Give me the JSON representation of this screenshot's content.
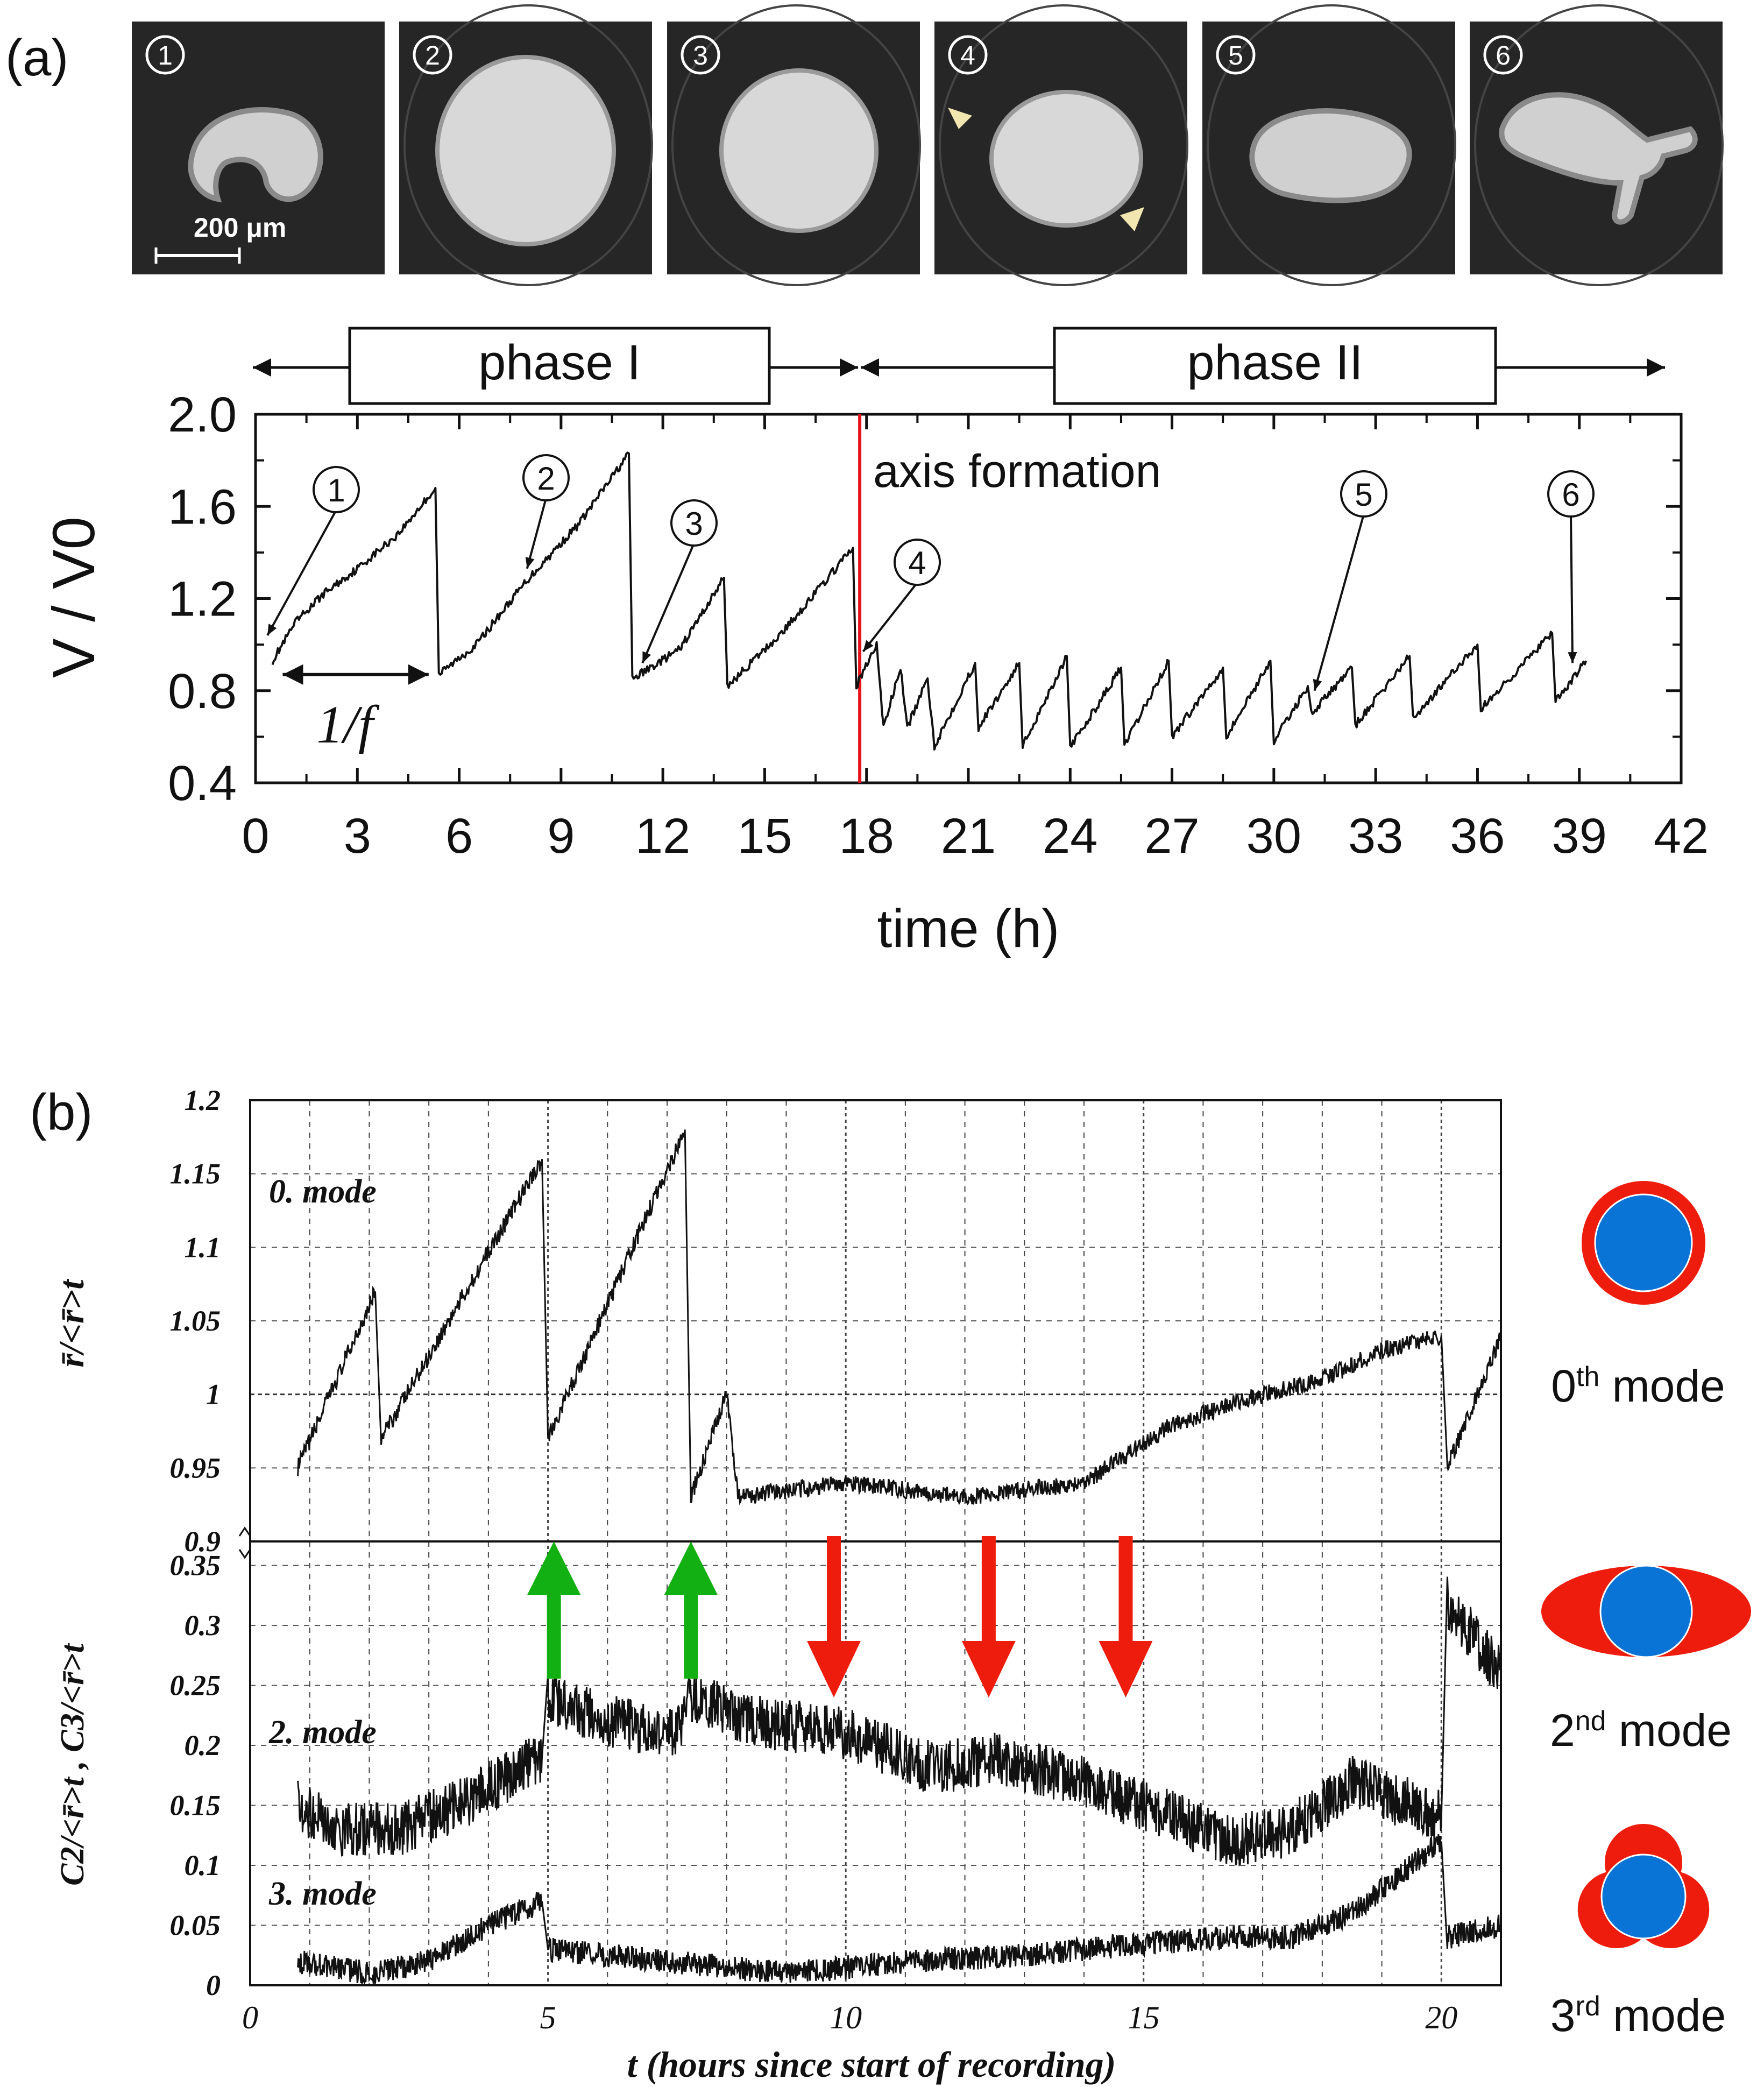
{
  "panel_a": {
    "label": "(a)",
    "thumbnails": [
      "①",
      "②",
      "③",
      "④",
      "⑤",
      "⑥"
    ],
    "scale_bar": "200 μm",
    "phases": [
      "phase I",
      "phase II"
    ],
    "annotation": "axis formation",
    "period_label": "1/f"
  },
  "panel_b": {
    "label": "(b)",
    "modes": [
      {
        "label": "0th mode",
        "sup": "th",
        "color_shell": "#ee1c0c",
        "color_core": "#0a73d6"
      },
      {
        "label": "2nd mode",
        "sup": "nd",
        "color_shell": "#ee1c0c",
        "color_core": "#0a73d6"
      },
      {
        "label": "3rd mode",
        "sup": "rd",
        "color_shell": "#ee1c0c",
        "color_core": "#0a73d6"
      }
    ],
    "mode_text": [
      "0. mode",
      "2. mode",
      "3. mode"
    ],
    "arrow_colors": {
      "up": "#12b012",
      "down": "#ee1c0c"
    }
  },
  "chart_data": [
    {
      "type": "line",
      "xlabel": "time  (h)",
      "ylabel": "V / V0",
      "xlim": [
        0,
        42
      ],
      "ylim": [
        0.4,
        2.0
      ],
      "xticks": [
        0,
        3,
        6,
        9,
        12,
        15,
        18,
        21,
        24,
        27,
        30,
        33,
        36,
        39,
        42
      ],
      "yticks": [
        0.4,
        0.8,
        1.2,
        1.6,
        2.0
      ],
      "grid": false,
      "axis_formation_x": 17.8,
      "series": [
        {
          "x": [
            0.5,
            1.2,
            2.0,
            3.0,
            4.2,
            5.3,
            5.4,
            6.5,
            8.0,
            9.5,
            11.0,
            11.1,
            12.5,
            13.8,
            13.9,
            15.5,
            17.6,
            17.7,
            18.3,
            18.5,
            19.0,
            19.2,
            19.8,
            20.0,
            21.2,
            21.3,
            22.5,
            22.6,
            23.9,
            24.0,
            25.5,
            25.6,
            26.9,
            27.0,
            28.5,
            28.6,
            29.9,
            30.0,
            31.0,
            31.1,
            32.3,
            32.4,
            34.0,
            34.1,
            36.0,
            36.1,
            38.2,
            38.3,
            39.2
          ],
          "y": [
            0.93,
            1.1,
            1.22,
            1.33,
            1.48,
            1.68,
            0.87,
            1.0,
            1.28,
            1.52,
            1.83,
            0.85,
            0.98,
            1.29,
            0.82,
            1.05,
            1.42,
            0.82,
            1.0,
            0.64,
            0.9,
            0.64,
            0.85,
            0.56,
            0.92,
            0.64,
            0.92,
            0.56,
            0.95,
            0.55,
            0.9,
            0.56,
            0.93,
            0.6,
            0.9,
            0.6,
            0.93,
            0.58,
            0.82,
            0.7,
            0.9,
            0.65,
            0.95,
            0.68,
            1.0,
            0.72,
            1.05,
            0.75,
            0.93
          ]
        }
      ],
      "annotations": [
        {
          "label": "1",
          "x": 0.35,
          "y": 1.04
        },
        {
          "label": "2",
          "x": 8.0,
          "y": 1.33
        },
        {
          "label": "3",
          "x": 11.4,
          "y": 0.92
        },
        {
          "label": "4",
          "x": 17.9,
          "y": 0.97
        },
        {
          "label": "5",
          "x": 31.2,
          "y": 0.8
        },
        {
          "label": "6",
          "x": 38.8,
          "y": 0.92
        }
      ],
      "period_arrow": {
        "x": [
          0.8,
          5.1
        ],
        "y": 0.87
      }
    },
    {
      "type": "line",
      "xlabel": "t (hours since start of recording)",
      "xlim": [
        0,
        21
      ],
      "xticks": [
        0,
        5,
        10,
        15,
        20
      ],
      "grid": true,
      "subplots": [
        {
          "ylabel": "r̄/<r̄>t",
          "ylim": [
            0.9,
            1.2
          ],
          "yticks": [
            0.9,
            0.95,
            1,
            1.05,
            1.1,
            1.15,
            1.2
          ],
          "series": [
            {
              "name": "0. mode",
              "x": [
                0.8,
                2.1,
                2.2,
                4.9,
                5.0,
                7.3,
                7.4,
                8.0,
                8.2,
                10.0,
                12.0,
                14.0,
                15.5,
                17.0,
                18.0,
                19.0,
                20.0,
                20.1,
                21.0
              ],
              "y": [
                0.95,
                1.07,
                0.97,
                1.16,
                0.97,
                1.18,
                0.93,
                1.0,
                0.93,
                0.94,
                0.93,
                0.94,
                0.98,
                1.0,
                1.01,
                1.03,
                1.04,
                0.95,
                1.04
              ]
            }
          ]
        },
        {
          "ylabel": "C2/<r̄>t ,  C3/<r̄>t",
          "ylim": [
            0,
            0.37
          ],
          "yticks": [
            0,
            0.05,
            0.1,
            0.15,
            0.2,
            0.25,
            0.3,
            0.35
          ],
          "series": [
            {
              "name": "2. mode",
              "x": [
                0.8,
                1.5,
                2.5,
                3.5,
                4.9,
                5.0,
                6.0,
                7.2,
                7.4,
                8.5,
                10.0,
                11.5,
                12.5,
                14.0,
                15.0,
                16.5,
                17.5,
                18.5,
                19.5,
                20.0,
                20.1,
                21.0
              ],
              "y": [
                0.15,
                0.13,
                0.13,
                0.15,
                0.19,
                0.24,
                0.22,
                0.21,
                0.24,
                0.22,
                0.21,
                0.18,
                0.19,
                0.17,
                0.15,
                0.12,
                0.13,
                0.17,
                0.15,
                0.14,
                0.32,
                0.26
              ]
            },
            {
              "name": "3. mode",
              "x": [
                0.8,
                2.0,
                3.0,
                4.0,
                4.9,
                5.0,
                7.0,
                9.0,
                11.0,
                13.0,
                15.0,
                16.5,
                17.5,
                18.5,
                19.5,
                20.0,
                20.1,
                21.0
              ],
              "y": [
                0.02,
                0.01,
                0.02,
                0.05,
                0.07,
                0.03,
                0.02,
                0.01,
                0.02,
                0.025,
                0.035,
                0.04,
                0.04,
                0.06,
                0.1,
                0.12,
                0.04,
                0.05
              ]
            }
          ]
        }
      ],
      "arrows": [
        {
          "direction": "up",
          "x": 5.1
        },
        {
          "direction": "up",
          "x": 7.4
        },
        {
          "direction": "down",
          "x": 9.8
        },
        {
          "direction": "down",
          "x": 12.4
        },
        {
          "direction": "down",
          "x": 14.7
        }
      ]
    }
  ]
}
